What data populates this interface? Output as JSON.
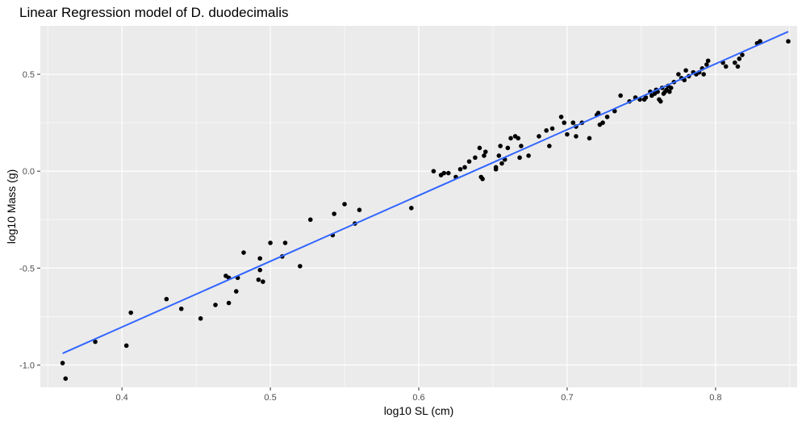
{
  "chart_data": {
    "type": "scatter",
    "title": "Linear Regression model of D. duodecimalis",
    "xlabel": "log10 SL (cm)",
    "ylabel": "log10 Mass (g)",
    "xlim": [
      0.345,
      0.855
    ],
    "ylim": [
      -1.115,
      0.75
    ],
    "x_ticks": [
      0.4,
      0.5,
      0.6,
      0.7,
      0.8
    ],
    "x_tick_labels": [
      "0.4",
      "0.5",
      "0.6",
      "0.7",
      "0.8"
    ],
    "y_ticks": [
      -1.0,
      -0.5,
      0.0,
      0.5
    ],
    "y_tick_labels": [
      "-1.0",
      "-0.5",
      "0.0",
      "0.5"
    ],
    "grid": true,
    "colors": {
      "panel": "#ebebeb",
      "grid": "#ffffff",
      "points": "#000000",
      "line": "#3366ff"
    },
    "points": [
      [
        0.36,
        -0.99
      ],
      [
        0.362,
        -1.07
      ],
      [
        0.382,
        -0.88
      ],
      [
        0.403,
        -0.9
      ],
      [
        0.406,
        -0.73
      ],
      [
        0.43,
        -0.66
      ],
      [
        0.44,
        -0.71
      ],
      [
        0.453,
        -0.76
      ],
      [
        0.463,
        -0.69
      ],
      [
        0.47,
        -0.54
      ],
      [
        0.472,
        -0.55
      ],
      [
        0.472,
        -0.68
      ],
      [
        0.477,
        -0.62
      ],
      [
        0.478,
        -0.55
      ],
      [
        0.482,
        -0.42
      ],
      [
        0.492,
        -0.56
      ],
      [
        0.493,
        -0.45
      ],
      [
        0.493,
        -0.51
      ],
      [
        0.495,
        -0.57
      ],
      [
        0.5,
        -0.37
      ],
      [
        0.508,
        -0.44
      ],
      [
        0.51,
        -0.37
      ],
      [
        0.52,
        -0.49
      ],
      [
        0.527,
        -0.25
      ],
      [
        0.542,
        -0.33
      ],
      [
        0.543,
        -0.22
      ],
      [
        0.55,
        -0.17
      ],
      [
        0.557,
        -0.27
      ],
      [
        0.56,
        -0.2
      ],
      [
        0.595,
        -0.19
      ],
      [
        0.61,
        0.0
      ],
      [
        0.615,
        -0.02
      ],
      [
        0.617,
        -0.01
      ],
      [
        0.62,
        -0.01
      ],
      [
        0.625,
        -0.03
      ],
      [
        0.628,
        0.01
      ],
      [
        0.631,
        0.02
      ],
      [
        0.634,
        0.05
      ],
      [
        0.638,
        0.07
      ],
      [
        0.641,
        0.12
      ],
      [
        0.642,
        -0.03
      ],
      [
        0.643,
        -0.04
      ],
      [
        0.644,
        0.08
      ],
      [
        0.645,
        0.1
      ],
      [
        0.652,
        0.02
      ],
      [
        0.652,
        0.01
      ],
      [
        0.654,
        0.08
      ],
      [
        0.655,
        0.13
      ],
      [
        0.656,
        0.04
      ],
      [
        0.658,
        0.06
      ],
      [
        0.66,
        0.12
      ],
      [
        0.662,
        0.17
      ],
      [
        0.665,
        0.18
      ],
      [
        0.667,
        0.17
      ],
      [
        0.668,
        0.07
      ],
      [
        0.669,
        0.13
      ],
      [
        0.674,
        0.08
      ],
      [
        0.681,
        0.18
      ],
      [
        0.686,
        0.21
      ],
      [
        0.688,
        0.13
      ],
      [
        0.69,
        0.22
      ],
      [
        0.696,
        0.28
      ],
      [
        0.698,
        0.25
      ],
      [
        0.7,
        0.19
      ],
      [
        0.704,
        0.25
      ],
      [
        0.706,
        0.23
      ],
      [
        0.706,
        0.18
      ],
      [
        0.71,
        0.25
      ],
      [
        0.715,
        0.17
      ],
      [
        0.72,
        0.29
      ],
      [
        0.721,
        0.3
      ],
      [
        0.722,
        0.24
      ],
      [
        0.724,
        0.25
      ],
      [
        0.727,
        0.28
      ],
      [
        0.732,
        0.31
      ],
      [
        0.736,
        0.39
      ],
      [
        0.742,
        0.36
      ],
      [
        0.746,
        0.38
      ],
      [
        0.749,
        0.37
      ],
      [
        0.752,
        0.37
      ],
      [
        0.753,
        0.38
      ],
      [
        0.756,
        0.41
      ],
      [
        0.757,
        0.39
      ],
      [
        0.759,
        0.4
      ],
      [
        0.76,
        0.42
      ],
      [
        0.761,
        0.41
      ],
      [
        0.762,
        0.37
      ],
      [
        0.763,
        0.36
      ],
      [
        0.764,
        0.43
      ],
      [
        0.765,
        0.4
      ],
      [
        0.766,
        0.41
      ],
      [
        0.767,
        0.42
      ],
      [
        0.768,
        0.44
      ],
      [
        0.769,
        0.41
      ],
      [
        0.77,
        0.43
      ],
      [
        0.772,
        0.46
      ],
      [
        0.775,
        0.5
      ],
      [
        0.777,
        0.48
      ],
      [
        0.779,
        0.47
      ],
      [
        0.78,
        0.52
      ],
      [
        0.782,
        0.49
      ],
      [
        0.785,
        0.51
      ],
      [
        0.787,
        0.5
      ],
      [
        0.789,
        0.51
      ],
      [
        0.791,
        0.53
      ],
      [
        0.792,
        0.5
      ],
      [
        0.794,
        0.55
      ],
      [
        0.795,
        0.57
      ],
      [
        0.805,
        0.56
      ],
      [
        0.807,
        0.54
      ],
      [
        0.813,
        0.56
      ],
      [
        0.815,
        0.54
      ],
      [
        0.816,
        0.58
      ],
      [
        0.818,
        0.6
      ],
      [
        0.828,
        0.66
      ],
      [
        0.83,
        0.67
      ],
      [
        0.849,
        0.67
      ]
    ],
    "fit_line": {
      "x": [
        0.36,
        0.849
      ],
      "y": [
        -0.94,
        0.72
      ]
    }
  }
}
